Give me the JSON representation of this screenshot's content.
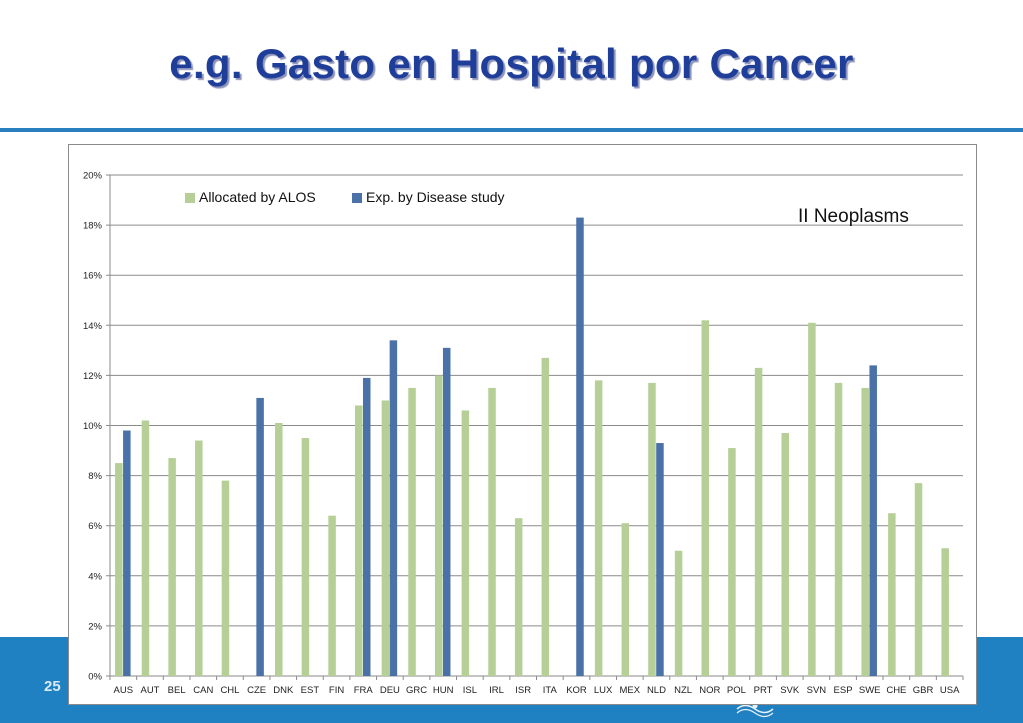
{
  "slide": {
    "title": "e.g. Gasto en Hospital por Cancer",
    "page_number": "25"
  },
  "colors": {
    "title": "#1f3e9a",
    "rule": "#2a7fc1",
    "footer": "#1f81c2",
    "series_alos": "#b6cf97",
    "series_disease": "#4a72a8",
    "gridline": "#8a8a8a"
  },
  "footer_logo_icon": "un-emblem-icon",
  "chart_data": {
    "type": "bar",
    "title": "",
    "xlabel": "",
    "ylabel": "",
    "annotation": "II Neoplasms",
    "legend_position": "top",
    "grid": true,
    "ylim": [
      0,
      0.2
    ],
    "yticks": [
      {
        "value": 0,
        "label": "0%"
      },
      {
        "value": 0.02,
        "label": "2%"
      },
      {
        "value": 0.04,
        "label": "4%"
      },
      {
        "value": 0.06,
        "label": "6%"
      },
      {
        "value": 0.08,
        "label": "8%"
      },
      {
        "value": 0.1,
        "label": "10%"
      },
      {
        "value": 0.12,
        "label": "12%"
      },
      {
        "value": 0.14,
        "label": "14%"
      },
      {
        "value": 0.16,
        "label": "16%"
      },
      {
        "value": 0.18,
        "label": "18%"
      },
      {
        "value": 0.2,
        "label": "20%"
      }
    ],
    "categories": [
      "AUS",
      "AUT",
      "BEL",
      "CAN",
      "CHL",
      "CZE",
      "DNK",
      "EST",
      "FIN",
      "FRA",
      "DEU",
      "GRC",
      "HUN",
      "ISL",
      "IRL",
      "ISR",
      "ITA",
      "KOR",
      "LUX",
      "MEX",
      "NLD",
      "NZL",
      "NOR",
      "POL",
      "PRT",
      "SVK",
      "SVN",
      "ESP",
      "SWE",
      "CHE",
      "GBR",
      "USA"
    ],
    "series": [
      {
        "name": "Allocated by ALOS",
        "color": "#b6cf97",
        "values": [
          0.085,
          0.102,
          0.087,
          0.094,
          0.078,
          null,
          0.101,
          0.095,
          0.064,
          0.108,
          0.11,
          0.115,
          0.12,
          0.106,
          0.115,
          0.063,
          0.127,
          null,
          0.118,
          0.061,
          0.117,
          0.05,
          0.142,
          0.091,
          0.123,
          0.097,
          0.141,
          0.117,
          0.115,
          0.065,
          0.077,
          0.051
        ]
      },
      {
        "name": "Exp. by Disease study",
        "color": "#4a72a8",
        "values": [
          0.098,
          null,
          null,
          null,
          null,
          0.111,
          null,
          null,
          null,
          0.119,
          0.134,
          null,
          0.131,
          null,
          null,
          null,
          null,
          0.183,
          null,
          null,
          0.093,
          null,
          null,
          null,
          null,
          null,
          null,
          null,
          0.124,
          null,
          null,
          null
        ]
      }
    ]
  }
}
